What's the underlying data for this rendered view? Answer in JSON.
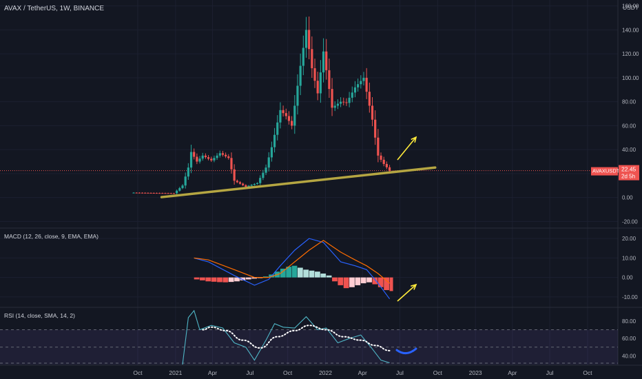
{
  "header": {
    "symbol_title": "AVAX / TetherUS, 1W, BINANCE",
    "currency": "USDT"
  },
  "price_badge": {
    "symbol": "AVAXUSDT",
    "price": "22.45",
    "countdown": "2d 5h"
  },
  "colors": {
    "background": "#131722",
    "grid": "#1c2030",
    "separator": "#2a2e39",
    "text": "#b2b5be",
    "up": "#26a69a",
    "down": "#ef5350",
    "trendline": "#b5a642",
    "arrow": "#ffeb3b",
    "macd_line": "#2962ff",
    "signal_line": "#ff6d00",
    "rsi_line": "#4fb6c6",
    "rsi_ma": "#ffffff",
    "rsi_band": "#7e57c2",
    "annotation_blue": "#2962ff"
  },
  "chart_data": [
    {
      "type": "candlestick",
      "title": "AVAX / TetherUS, 1W, BINANCE",
      "ylabel": "USDT",
      "ylim": [
        -25,
        165
      ],
      "y_ticks": [
        160,
        140,
        120,
        100,
        80,
        60,
        40,
        20,
        0,
        -20
      ],
      "y_tick_labels": [
        "160.00",
        "140.00",
        "120.00",
        "100.00",
        "80.00",
        "60.00",
        "40.00",
        "",
        "0.00",
        "-20.00"
      ],
      "x_ticks": [
        "Oct",
        "2021",
        "Apr",
        "Jul",
        "Oct",
        "2022",
        "Apr",
        "Jul",
        "Oct",
        "2023",
        "Apr",
        "Jul",
        "Oct"
      ],
      "x_tick_dates": [
        "2020-10-01",
        "2021-01-01",
        "2021-04-01",
        "2021-07-01",
        "2021-10-01",
        "2022-01-01",
        "2022-04-01",
        "2022-07-01",
        "2022-10-01",
        "2023-01-01",
        "2023-04-01",
        "2023-07-01",
        "2023-10-01"
      ],
      "last_price": 22.45,
      "close_series": [
        {
          "date": "2020-09-21",
          "close": 4.0
        },
        {
          "date": "2020-12-28",
          "close": 3.5
        },
        {
          "date": "2021-01-18",
          "close": 10
        },
        {
          "date": "2021-02-01",
          "close": 25
        },
        {
          "date": "2021-02-08",
          "close": 38
        },
        {
          "date": "2021-02-22",
          "close": 30
        },
        {
          "date": "2021-03-08",
          "close": 35
        },
        {
          "date": "2021-03-29",
          "close": 31
        },
        {
          "date": "2021-04-19",
          "close": 37
        },
        {
          "date": "2021-05-10",
          "close": 33
        },
        {
          "date": "2021-05-24",
          "close": 14
        },
        {
          "date": "2021-06-21",
          "close": 9
        },
        {
          "date": "2021-07-19",
          "close": 12
        },
        {
          "date": "2021-08-09",
          "close": 25
        },
        {
          "date": "2021-08-23",
          "close": 42
        },
        {
          "date": "2021-09-13",
          "close": 73
        },
        {
          "date": "2021-09-27",
          "close": 68
        },
        {
          "date": "2021-10-11",
          "close": 60
        },
        {
          "date": "2021-11-01",
          "close": 110
        },
        {
          "date": "2021-11-15",
          "close": 140
        },
        {
          "date": "2021-11-29",
          "close": 108
        },
        {
          "date": "2021-12-13",
          "close": 87
        },
        {
          "date": "2021-12-27",
          "close": 122
        },
        {
          "date": "2022-01-17",
          "close": 75
        },
        {
          "date": "2022-02-07",
          "close": 80
        },
        {
          "date": "2022-02-21",
          "close": 79
        },
        {
          "date": "2022-03-14",
          "close": 92
        },
        {
          "date": "2022-04-04",
          "close": 100
        },
        {
          "date": "2022-04-25",
          "close": 65
        },
        {
          "date": "2022-05-09",
          "close": 35
        },
        {
          "date": "2022-05-23",
          "close": 28
        },
        {
          "date": "2022-06-06",
          "close": 22.45
        }
      ],
      "annotations": [
        {
          "type": "trendline",
          "from": {
            "date": "2020-11-28",
            "value": 0.3
          },
          "to": {
            "date": "2022-09-25",
            "value": 25
          }
        },
        {
          "type": "arrow",
          "direction": "up"
        }
      ]
    },
    {
      "type": "line",
      "title": "MACD (12, 26, close, 9, EMA, EMA)",
      "ylim": [
        -15,
        25
      ],
      "y_ticks": [
        20,
        10,
        0,
        -10
      ],
      "y_tick_labels": [
        "20.00",
        "10.00",
        "0.00",
        "-10.00"
      ],
      "series": [
        {
          "name": "MACD",
          "points": [
            [
              "2021-02-15",
              10
            ],
            [
              "2021-03-22",
              8
            ],
            [
              "2021-05-24",
              1
            ],
            [
              "2021-07-12",
              -4
            ],
            [
              "2021-08-16",
              -1
            ],
            [
              "2021-09-13",
              6
            ],
            [
              "2021-10-18",
              14
            ],
            [
              "2021-11-22",
              20
            ],
            [
              "2021-12-27",
              18
            ],
            [
              "2022-02-07",
              8
            ],
            [
              "2022-03-14",
              6
            ],
            [
              "2022-04-11",
              4
            ],
            [
              "2022-05-09",
              -3
            ],
            [
              "2022-06-06",
              -11
            ]
          ]
        },
        {
          "name": "Signal",
          "points": [
            [
              "2021-02-15",
              10
            ],
            [
              "2021-03-22",
              9
            ],
            [
              "2021-05-24",
              4
            ],
            [
              "2021-07-12",
              0
            ],
            [
              "2021-08-16",
              0
            ],
            [
              "2021-09-13",
              2
            ],
            [
              "2021-10-18",
              8
            ],
            [
              "2021-11-22",
              14
            ],
            [
              "2021-12-27",
              19
            ],
            [
              "2022-02-07",
              13
            ],
            [
              "2022-03-14",
              9
            ],
            [
              "2022-04-11",
              6
            ],
            [
              "2022-05-09",
              2
            ],
            [
              "2022-06-06",
              -3
            ]
          ]
        }
      ],
      "histogram": [
        {
          "date": "2021-02-15",
          "value": -1.0
        },
        {
          "date": "2021-03-01",
          "value": -1.5
        },
        {
          "date": "2021-03-15",
          "value": -2.0
        },
        {
          "date": "2021-03-29",
          "value": -2.2
        },
        {
          "date": "2021-04-12",
          "value": -2.4
        },
        {
          "date": "2021-04-26",
          "value": -2.5
        },
        {
          "date": "2021-05-10",
          "value": -2.3
        },
        {
          "date": "2021-05-24",
          "value": -2.0
        },
        {
          "date": "2021-06-07",
          "value": -1.5
        },
        {
          "date": "2021-06-21",
          "value": -1.0
        },
        {
          "date": "2021-07-05",
          "value": -0.6
        },
        {
          "date": "2021-07-19",
          "value": -0.3
        },
        {
          "date": "2021-08-02",
          "value": 0.5
        },
        {
          "date": "2021-08-16",
          "value": 1.5
        },
        {
          "date": "2021-08-30",
          "value": 3.0
        },
        {
          "date": "2021-09-13",
          "value": 4.5
        },
        {
          "date": "2021-09-27",
          "value": 5.5
        },
        {
          "date": "2021-10-11",
          "value": 6.0
        },
        {
          "date": "2021-10-25",
          "value": 5.0
        },
        {
          "date": "2021-11-08",
          "value": 4.0
        },
        {
          "date": "2021-11-22",
          "value": 3.5
        },
        {
          "date": "2021-12-06",
          "value": 3.0
        },
        {
          "date": "2021-12-20",
          "value": 2.0
        },
        {
          "date": "2022-01-03",
          "value": 1.0
        },
        {
          "date": "2022-01-17",
          "value": -2.0
        },
        {
          "date": "2022-01-31",
          "value": -4.0
        },
        {
          "date": "2022-02-14",
          "value": -5.5
        },
        {
          "date": "2022-02-28",
          "value": -5.0
        },
        {
          "date": "2022-03-14",
          "value": -4.0
        },
        {
          "date": "2022-03-28",
          "value": -3.0
        },
        {
          "date": "2022-04-11",
          "value": -2.5
        },
        {
          "date": "2022-04-25",
          "value": -3.5
        },
        {
          "date": "2022-05-09",
          "value": -5.0
        },
        {
          "date": "2022-05-23",
          "value": -6.5
        },
        {
          "date": "2022-06-06",
          "value": -7.0
        }
      ],
      "annotations": [
        {
          "type": "arrow",
          "direction": "up"
        }
      ]
    },
    {
      "type": "line",
      "title": "RSI (14, close, SMA, 14, 2)",
      "ylim": [
        30,
        95
      ],
      "y_ticks": [
        80,
        60,
        40
      ],
      "y_tick_labels": [
        "80.00",
        "60.00",
        "40.00"
      ],
      "bands": {
        "upper": 70,
        "middle": 50,
        "lower": 30
      },
      "series": [
        {
          "name": "RSI",
          "points": [
            [
              "2021-01-18",
              30
            ],
            [
              "2021-02-01",
              84
            ],
            [
              "2021-02-15",
              92
            ],
            [
              "2021-03-01",
              70
            ],
            [
              "2021-03-29",
              75
            ],
            [
              "2021-04-26",
              72
            ],
            [
              "2021-05-24",
              55
            ],
            [
              "2021-06-21",
              50
            ],
            [
              "2021-07-12",
              35
            ],
            [
              "2021-08-09",
              58
            ],
            [
              "2021-08-30",
              77
            ],
            [
              "2021-09-20",
              73
            ],
            [
              "2021-10-18",
              72
            ],
            [
              "2021-11-15",
              85
            ],
            [
              "2021-12-13",
              70
            ],
            [
              "2022-01-03",
              72
            ],
            [
              "2022-01-31",
              55
            ],
            [
              "2022-02-28",
              60
            ],
            [
              "2022-03-28",
              64
            ],
            [
              "2022-04-25",
              48
            ],
            [
              "2022-05-16",
              35
            ],
            [
              "2022-06-06",
              32
            ]
          ]
        },
        {
          "name": "RSI-based MA",
          "points": [
            [
              "2021-03-08",
              70
            ],
            [
              "2021-03-29",
              73
            ],
            [
              "2021-05-03",
              69
            ],
            [
              "2021-06-14",
              58
            ],
            [
              "2021-07-26",
              49
            ],
            [
              "2021-09-06",
              62
            ],
            [
              "2021-10-18",
              69
            ],
            [
              "2021-11-22",
              75
            ],
            [
              "2022-01-03",
              70
            ],
            [
              "2022-02-14",
              62
            ],
            [
              "2022-03-28",
              58
            ],
            [
              "2022-05-02",
              52
            ],
            [
              "2022-06-06",
              46
            ]
          ]
        }
      ],
      "annotations": [
        {
          "type": "projection-curve"
        }
      ]
    }
  ]
}
